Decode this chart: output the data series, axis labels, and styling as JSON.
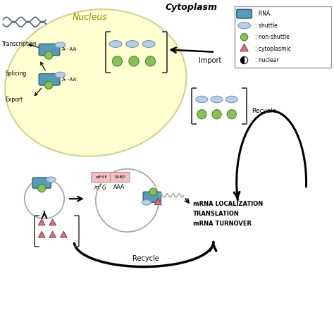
{
  "bg_color": "#ffffff",
  "nucleus_color": "#ffffcc",
  "nucleus_edge": "#cccc88",
  "rna_blue": "#5b9ab5",
  "shuttle_blue": "#b8cfe0",
  "non_green": "#8abf5e",
  "cyto_pink": "#d4737a",
  "import_label": "Import",
  "recycle_label1": "Recycle",
  "recycle_label2": "Recycle",
  "nucleus_label": "Nucleus",
  "cytoplasm_label": "Cytoplasm",
  "transcription_label": "Transcription",
  "splicing_label": "Splicing",
  "export_label": "Export",
  "mrna_loc_line1": "mRNA LOCALIZATION",
  "mrna_loc_line2": "TRANSLATION",
  "mrna_loc_line3": "mRNA TURNOVER",
  "eif4f_label": "eIF4F",
  "pabp_label": "PABP"
}
